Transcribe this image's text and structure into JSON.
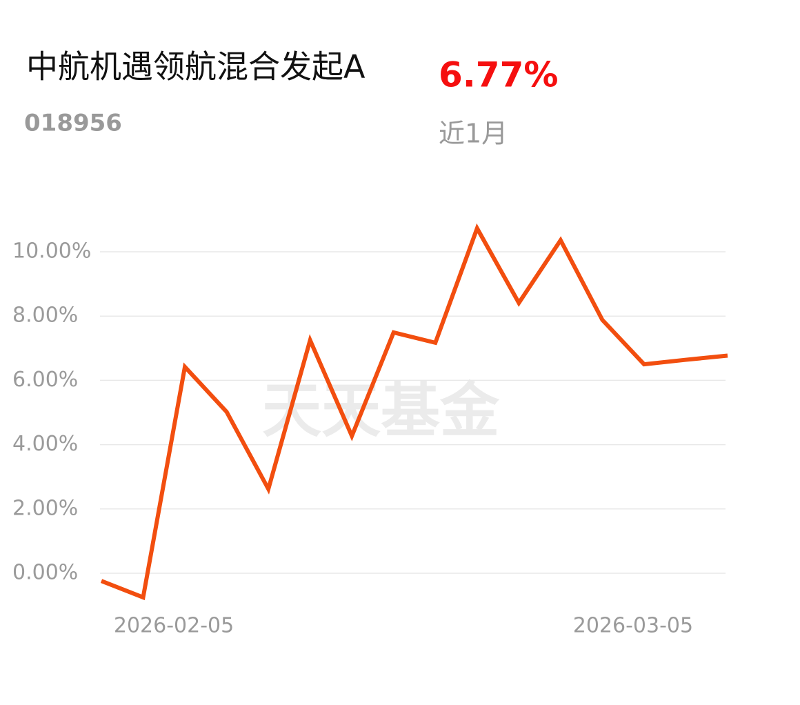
{
  "chart_data": {
    "type": "line",
    "title": "中航机遇领航混合发起A",
    "subtitle": "018956",
    "change": "6.77%",
    "period": "近1月",
    "watermark": "天天基金",
    "categories": [
      null,
      null,
      "2026-02-05",
      null,
      null,
      null,
      null,
      null,
      null,
      null,
      null,
      null,
      null,
      "2026-03-05",
      null,
      null
    ],
    "series": [
      {
        "name": "中航机遇领航混合发起A",
        "color": "#f24e0f",
        "values": [
          -0.24,
          -0.75,
          6.42,
          5.02,
          2.62,
          7.25,
          4.27,
          7.49,
          7.17,
          10.73,
          8.41,
          10.36,
          7.88,
          6.5,
          6.64,
          6.77
        ]
      }
    ],
    "ylim": [
      -1,
      11
    ],
    "yticks": [
      {
        "value": 0,
        "label": "0.00%"
      },
      {
        "value": 2,
        "label": "2.00%"
      },
      {
        "value": 4,
        "label": "4.00%"
      },
      {
        "value": 6,
        "label": "6.00%"
      },
      {
        "value": 8,
        "label": "8.00%"
      },
      {
        "value": 10,
        "label": "10.00%"
      }
    ],
    "grid": true
  }
}
